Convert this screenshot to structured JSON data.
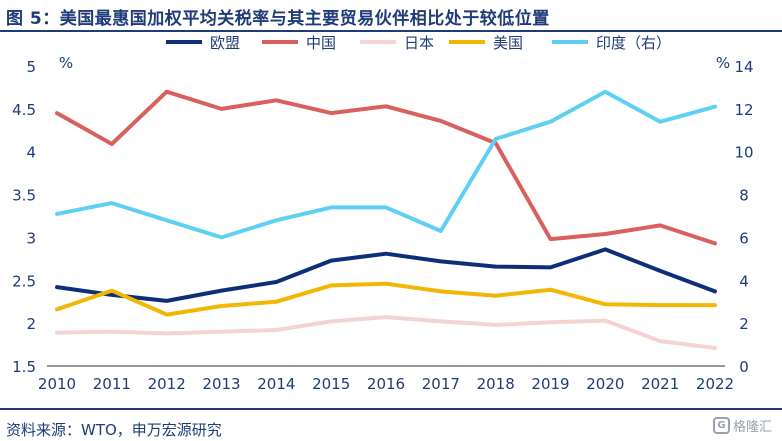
{
  "title": "图 5：美国最惠国加权平均关税率与其主要贸易伙伴相比处于较低位置",
  "source": "资料来源：WTO，申万宏源研究",
  "watermark": {
    "text": "格隆汇",
    "icon": "logo-icon"
  },
  "chart_data": {
    "type": "line",
    "x": [
      "2010",
      "2011",
      "2012",
      "2013",
      "2014",
      "2015",
      "2016",
      "2017",
      "2018",
      "2019",
      "2020",
      "2021",
      "2022"
    ],
    "y_left": {
      "unit": "%",
      "ylim": [
        1.5,
        5
      ],
      "ticks": [
        "1.5",
        "2",
        "2.5",
        "3",
        "3.5",
        "4",
        "4.5",
        "5"
      ]
    },
    "y_right": {
      "unit": "%",
      "ylim": [
        0,
        14
      ],
      "ticks": [
        "0",
        "2",
        "4",
        "6",
        "8",
        "10",
        "12",
        "14"
      ]
    },
    "legend_position": "top",
    "grid": false,
    "series": [
      {
        "name": "欧盟",
        "axis": "left",
        "color": "#0d2f7a",
        "values": [
          2.42,
          2.33,
          2.26,
          2.38,
          2.48,
          2.73,
          2.81,
          2.72,
          2.66,
          2.65,
          2.86,
          2.61,
          2.37
        ]
      },
      {
        "name": "中国",
        "axis": "left",
        "color": "#d9605c",
        "values": [
          4.45,
          4.09,
          4.7,
          4.5,
          4.6,
          4.45,
          4.53,
          4.36,
          4.1,
          2.98,
          3.04,
          3.14,
          2.93
        ]
      },
      {
        "name": "日本",
        "axis": "left",
        "color": "#f6d3d3",
        "values": [
          1.89,
          1.9,
          1.88,
          1.9,
          1.92,
          2.02,
          2.07,
          2.02,
          1.98,
          2.01,
          2.03,
          1.79,
          1.71
        ]
      },
      {
        "name": "美国",
        "axis": "left",
        "color": "#f2b705",
        "values": [
          2.16,
          2.38,
          2.1,
          2.2,
          2.25,
          2.44,
          2.46,
          2.37,
          2.32,
          2.39,
          2.22,
          2.21,
          2.21
        ]
      },
      {
        "name": "印度（右）",
        "axis": "right",
        "color": "#5fd0f3",
        "values": [
          7.1,
          7.6,
          6.8,
          6.0,
          6.8,
          7.4,
          7.4,
          6.3,
          10.6,
          11.4,
          12.8,
          11.4,
          12.1
        ]
      }
    ]
  }
}
